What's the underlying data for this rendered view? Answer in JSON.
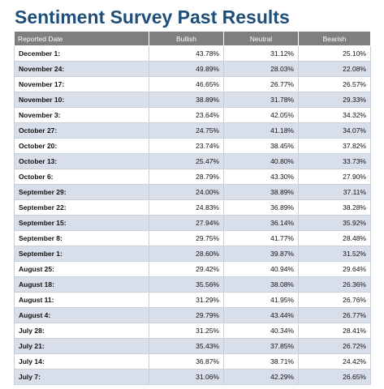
{
  "page": {
    "title": "Sentiment Survey Past Results"
  },
  "table": {
    "headers": [
      "Reported Date",
      "Bullish",
      "Neutral",
      "Bearish"
    ],
    "rows": [
      {
        "date": "December 1:",
        "bullish": "43.78%",
        "neutral": "31.12%",
        "bearish": "25.10%"
      },
      {
        "date": "November 24:",
        "bullish": "49.89%",
        "neutral": "28.03%",
        "bearish": "22.08%"
      },
      {
        "date": "November 17:",
        "bullish": "46.65%",
        "neutral": "26.77%",
        "bearish": "26.57%"
      },
      {
        "date": "November 10:",
        "bullish": "38.89%",
        "neutral": "31.78%",
        "bearish": "29.33%"
      },
      {
        "date": "November 3:",
        "bullish": "23.64%",
        "neutral": "42.05%",
        "bearish": "34.32%"
      },
      {
        "date": "October 27:",
        "bullish": "24.75%",
        "neutral": "41.18%",
        "bearish": "34.07%"
      },
      {
        "date": "October 20:",
        "bullish": "23.74%",
        "neutral": "38.45%",
        "bearish": "37.82%"
      },
      {
        "date": "October 13:",
        "bullish": "25.47%",
        "neutral": "40.80%",
        "bearish": "33.73%"
      },
      {
        "date": "October 6:",
        "bullish": "28.79%",
        "neutral": "43.30%",
        "bearish": "27.90%"
      },
      {
        "date": "September 29:",
        "bullish": "24.00%",
        "neutral": "38.89%",
        "bearish": "37.11%"
      },
      {
        "date": "September 22:",
        "bullish": "24.83%",
        "neutral": "36.89%",
        "bearish": "38.28%"
      },
      {
        "date": "September 15:",
        "bullish": "27.94%",
        "neutral": "36.14%",
        "bearish": "35.92%"
      },
      {
        "date": "September 8:",
        "bullish": "29.75%",
        "neutral": "41.77%",
        "bearish": "28.48%"
      },
      {
        "date": "September 1:",
        "bullish": "28.60%",
        "neutral": "39.87%",
        "bearish": "31.52%"
      },
      {
        "date": "August 25:",
        "bullish": "29.42%",
        "neutral": "40.94%",
        "bearish": "29.64%"
      },
      {
        "date": "August 18:",
        "bullish": "35.56%",
        "neutral": "38.08%",
        "bearish": "26.36%"
      },
      {
        "date": "August 11:",
        "bullish": "31.29%",
        "neutral": "41.95%",
        "bearish": "26.76%"
      },
      {
        "date": "August 4:",
        "bullish": "29.79%",
        "neutral": "43.44%",
        "bearish": "26.77%"
      },
      {
        "date": "July 28:",
        "bullish": "31.25%",
        "neutral": "40.34%",
        "bearish": "28.41%"
      },
      {
        "date": "July 21:",
        "bullish": "35.43%",
        "neutral": "37.85%",
        "bearish": "26.72%"
      },
      {
        "date": "July 14:",
        "bullish": "36.87%",
        "neutral": "38.71%",
        "bearish": "24.42%"
      },
      {
        "date": "July 7:",
        "bullish": "31.06%",
        "neutral": "42.29%",
        "bearish": "26.65%"
      }
    ]
  },
  "colors": {
    "title": "#1f4e79",
    "header_bg": "#7f7f7f",
    "alt_row_bg": "#d9dfea"
  }
}
